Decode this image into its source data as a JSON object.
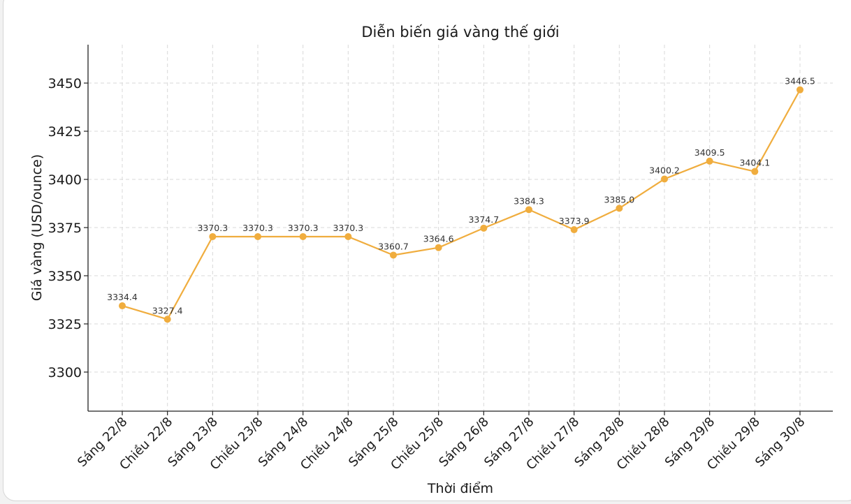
{
  "chart_data": {
    "type": "line",
    "title": "Diễn biến giá vàng thế giới",
    "xlabel": "Thời điểm",
    "ylabel": "Giá vàng (USD/ounce)",
    "categories": [
      "Sáng 22/8",
      "Chiều 22/8",
      "Sáng 23/8",
      "Chiều 23/8",
      "Sáng 24/8",
      "Chiều 24/8",
      "Sáng 25/8",
      "Chiều 25/8",
      "Sáng 26/8",
      "Sáng 27/8",
      "Chiều 27/8",
      "Sáng 28/8",
      "Chiều 28/8",
      "Sáng 29/8",
      "Chiều 29/8",
      "Sáng 30/8"
    ],
    "values": [
      3334.4,
      3327.4,
      3370.3,
      3370.3,
      3370.3,
      3370.3,
      3360.7,
      3364.6,
      3374.7,
      3384.3,
      3373.9,
      3385.0,
      3400.2,
      3409.5,
      3404.1,
      3446.5
    ],
    "data_labels": [
      "3334.4",
      "3327.4",
      "3370.3",
      "3370.3",
      "3370.3",
      "3370.3",
      "3360.7",
      "3364.6",
      "3374.7",
      "3384.3",
      "3373.9",
      "3385.0",
      "3400.2",
      "3409.5",
      "3404.1",
      "3446.5"
    ],
    "yticks": [
      3300,
      3325,
      3350,
      3375,
      3400,
      3425,
      3450
    ],
    "ylim": [
      3280,
      3467
    ],
    "grid": true,
    "color": "#f0ad3e"
  }
}
